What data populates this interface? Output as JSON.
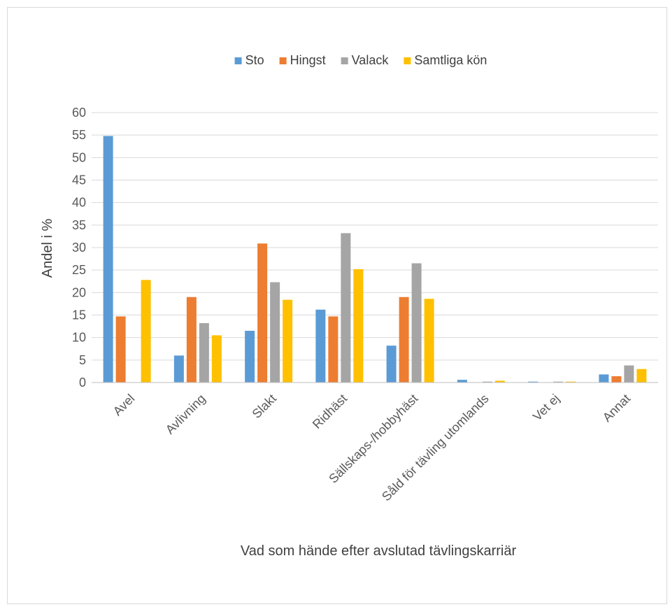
{
  "chart_data": {
    "type": "bar",
    "categories": [
      "Avel",
      "Avlivning",
      "Slakt",
      "Ridhäst",
      "Sällskaps-/hobbyhäst",
      "Såld för tävling utomlands",
      "Vet ej",
      "Annat"
    ],
    "series": [
      {
        "name": "Sto",
        "color": "#5b9bd5",
        "values": [
          54.8,
          6.0,
          11.5,
          16.2,
          8.2,
          0.6,
          0.2,
          1.8
        ]
      },
      {
        "name": "Hingst",
        "color": "#ed7d31",
        "values": [
          14.7,
          19.0,
          30.9,
          14.7,
          19.0,
          0.0,
          0.0,
          1.4
        ]
      },
      {
        "name": "Valack",
        "color": "#a5a5a5",
        "values": [
          0.0,
          13.2,
          22.3,
          33.2,
          26.5,
          0.2,
          0.2,
          3.8
        ]
      },
      {
        "name": "Samtliga kön",
        "color": "#ffc000",
        "values": [
          22.8,
          10.5,
          18.4,
          25.2,
          18.6,
          0.4,
          0.2,
          3.0
        ]
      }
    ],
    "xlabel": "Vad som hände efter avslutad tävlingskarriär",
    "ylabel": "Andel i %",
    "ylim": [
      0,
      60
    ],
    "yticks": [
      0,
      5,
      10,
      15,
      20,
      25,
      30,
      35,
      40,
      45,
      50,
      55,
      60
    ],
    "grid": true,
    "legend_position": "top"
  }
}
